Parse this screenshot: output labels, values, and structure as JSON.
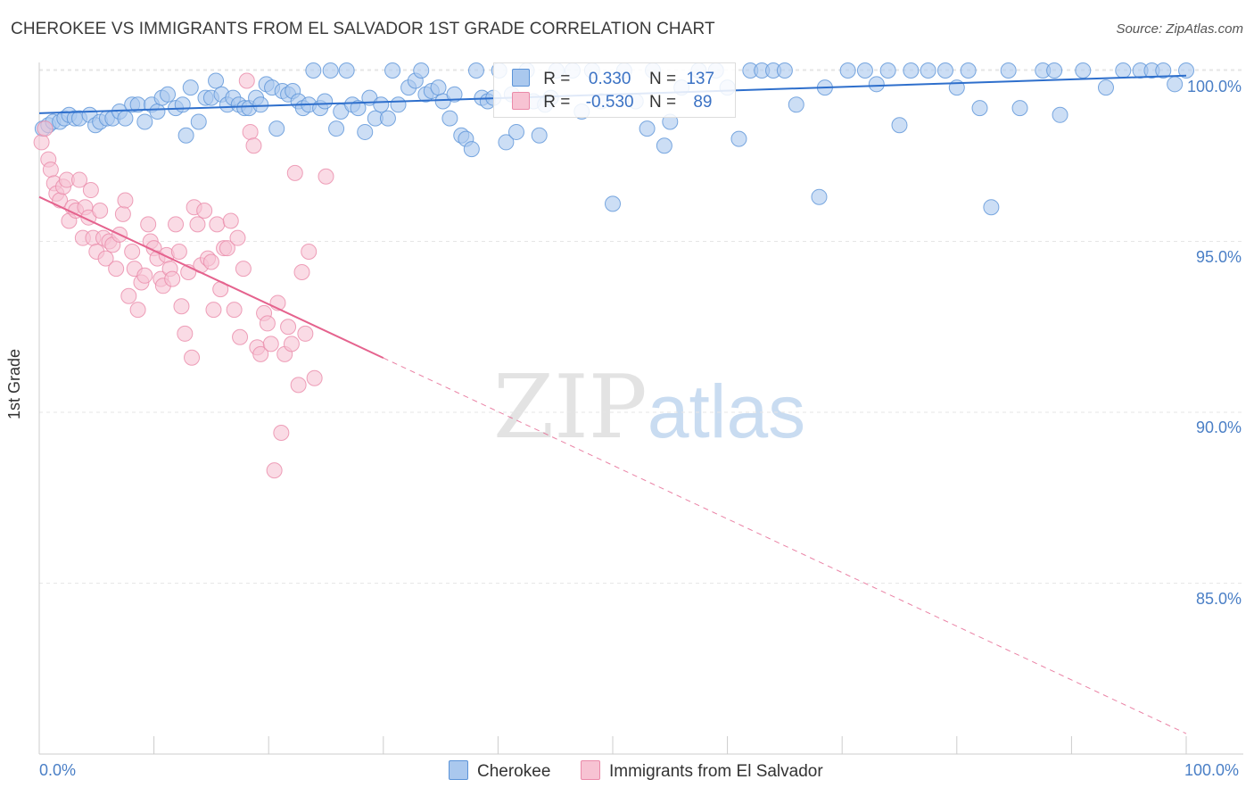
{
  "title": "CHEROKEE VS IMMIGRANTS FROM EL SALVADOR 1ST GRADE CORRELATION CHART",
  "source": "Source: ZipAtlas.com",
  "watermark": {
    "zip": "ZIP",
    "atlas": "atlas"
  },
  "legend_top": {
    "row1": {
      "r_label": "R =",
      "r_value": "0.330",
      "n_label": "N =",
      "n_value": "137"
    },
    "row2": {
      "r_label": "R =",
      "r_value": "-0.530",
      "n_label": "N =",
      "n_value": "89"
    }
  },
  "colors": {
    "blue_fill": "#aac8ee",
    "blue_stroke": "#5b93d8",
    "blue_line": "#2e6fcc",
    "pink_fill": "#f7c3d3",
    "pink_stroke": "#ea8aa9",
    "pink_line": "#e5638e",
    "tick_text": "#4a7fc6",
    "grid": "#e6e6e6"
  },
  "chart_data": {
    "type": "scatter",
    "title": "CHEROKEE VS IMMIGRANTS FROM EL SALVADOR 1ST GRADE CORRELATION CHART",
    "xlabel": "",
    "ylabel": "1st Grade",
    "xlim": [
      0,
      100
    ],
    "ylim": [
      80.5,
      100.8
    ],
    "x_tick_labels": [
      "0.0%",
      "100.0%"
    ],
    "y_ticks": [
      85,
      90,
      95,
      100
    ],
    "y_tick_labels": [
      "85.0%",
      "90.0%",
      "95.0%",
      "100.0%"
    ],
    "grid": true,
    "legend": [
      "Cherokee",
      "Immigrants from El Salvador"
    ],
    "series": [
      {
        "name": "Cherokee",
        "R": 0.33,
        "N": 137,
        "trend": {
          "x": [
            0,
            100
          ],
          "y": [
            98.75,
            99.85
          ],
          "solid_to": 100
        },
        "points": [
          [
            0.3,
            98.3
          ],
          [
            0.8,
            98.4
          ],
          [
            1.2,
            98.5
          ],
          [
            1.8,
            98.5
          ],
          [
            2.2,
            98.6
          ],
          [
            2.6,
            98.7
          ],
          [
            3.1,
            98.6
          ],
          [
            3.5,
            98.6
          ],
          [
            4.4,
            98.7
          ],
          [
            4.9,
            98.4
          ],
          [
            5.3,
            98.5
          ],
          [
            5.9,
            98.6
          ],
          [
            6.4,
            98.6
          ],
          [
            7.0,
            98.8
          ],
          [
            7.5,
            98.6
          ],
          [
            8.1,
            99.0
          ],
          [
            8.6,
            99.0
          ],
          [
            9.2,
            98.5
          ],
          [
            9.8,
            99.0
          ],
          [
            10.3,
            98.8
          ],
          [
            10.7,
            99.2
          ],
          [
            11.2,
            99.3
          ],
          [
            11.9,
            98.9
          ],
          [
            12.5,
            99.0
          ],
          [
            12.8,
            98.1
          ],
          [
            13.2,
            99.5
          ],
          [
            13.9,
            98.5
          ],
          [
            14.5,
            99.2
          ],
          [
            15.0,
            99.2
          ],
          [
            15.4,
            99.7
          ],
          [
            15.9,
            99.3
          ],
          [
            16.4,
            99.0
          ],
          [
            16.9,
            99.2
          ],
          [
            17.4,
            99.0
          ],
          [
            17.9,
            98.9
          ],
          [
            18.3,
            98.9
          ],
          [
            18.9,
            99.2
          ],
          [
            19.3,
            99.0
          ],
          [
            19.8,
            99.6
          ],
          [
            20.3,
            99.5
          ],
          [
            20.7,
            98.3
          ],
          [
            21.2,
            99.4
          ],
          [
            21.7,
            99.3
          ],
          [
            22.1,
            99.4
          ],
          [
            22.6,
            99.1
          ],
          [
            23.0,
            98.9
          ],
          [
            23.5,
            99.0
          ],
          [
            23.9,
            100.0
          ],
          [
            24.5,
            98.9
          ],
          [
            24.9,
            99.1
          ],
          [
            25.4,
            100.0
          ],
          [
            25.9,
            98.3
          ],
          [
            26.3,
            98.8
          ],
          [
            26.8,
            100.0
          ],
          [
            27.3,
            99.0
          ],
          [
            27.8,
            98.9
          ],
          [
            28.4,
            98.2
          ],
          [
            28.8,
            99.2
          ],
          [
            29.3,
            98.6
          ],
          [
            29.8,
            99.0
          ],
          [
            30.4,
            98.6
          ],
          [
            30.8,
            100.0
          ],
          [
            31.3,
            99.0
          ],
          [
            32.2,
            99.5
          ],
          [
            32.8,
            99.7
          ],
          [
            33.3,
            100.0
          ],
          [
            33.7,
            99.3
          ],
          [
            34.2,
            99.4
          ],
          [
            34.8,
            99.5
          ],
          [
            35.2,
            99.1
          ],
          [
            35.8,
            98.6
          ],
          [
            36.2,
            99.3
          ],
          [
            36.8,
            98.1
          ],
          [
            37.2,
            98.0
          ],
          [
            37.7,
            97.7
          ],
          [
            38.1,
            100.0
          ],
          [
            38.6,
            99.2
          ],
          [
            39.1,
            99.1
          ],
          [
            39.6,
            99.2
          ],
          [
            40.1,
            100.0
          ],
          [
            40.7,
            97.9
          ],
          [
            41.2,
            99.3
          ],
          [
            41.6,
            98.2
          ],
          [
            42.1,
            99.1
          ],
          [
            42.5,
            100.0
          ],
          [
            43.1,
            99.1
          ],
          [
            43.6,
            98.1
          ],
          [
            44.1,
            99.0
          ],
          [
            44.6,
            99.2
          ],
          [
            45.1,
            100.0
          ],
          [
            46.5,
            100.0
          ],
          [
            47.3,
            98.8
          ],
          [
            48.2,
            100.0
          ],
          [
            49.0,
            99.1
          ],
          [
            50.0,
            96.1
          ],
          [
            51.0,
            100.0
          ],
          [
            52.0,
            99.1
          ],
          [
            53.0,
            98.3
          ],
          [
            53.5,
            100.0
          ],
          [
            54.5,
            97.8
          ],
          [
            55.0,
            98.5
          ],
          [
            56.0,
            99.5
          ],
          [
            57.5,
            100.0
          ],
          [
            59.0,
            100.0
          ],
          [
            60.0,
            99.5
          ],
          [
            61.0,
            98.0
          ],
          [
            62.0,
            100.0
          ],
          [
            63.0,
            100.0
          ],
          [
            64.0,
            100.0
          ],
          [
            65.0,
            100.0
          ],
          [
            66.0,
            99.0
          ],
          [
            68.0,
            96.3
          ],
          [
            68.5,
            99.5
          ],
          [
            70.5,
            100.0
          ],
          [
            72.0,
            100.0
          ],
          [
            73.0,
            99.6
          ],
          [
            74.0,
            100.0
          ],
          [
            75.0,
            98.4
          ],
          [
            76.0,
            100.0
          ],
          [
            77.5,
            100.0
          ],
          [
            79.0,
            100.0
          ],
          [
            80.0,
            99.5
          ],
          [
            81.0,
            100.0
          ],
          [
            82.0,
            98.9
          ],
          [
            83.0,
            96.0
          ],
          [
            84.5,
            100.0
          ],
          [
            85.5,
            98.9
          ],
          [
            87.5,
            100.0
          ],
          [
            88.5,
            100.0
          ],
          [
            89.0,
            98.7
          ],
          [
            91.0,
            100.0
          ],
          [
            93.0,
            99.5
          ],
          [
            94.5,
            100.0
          ],
          [
            96.0,
            100.0
          ],
          [
            97.0,
            100.0
          ],
          [
            98.0,
            100.0
          ],
          [
            99.0,
            99.6
          ],
          [
            100.0,
            100.0
          ]
        ]
      },
      {
        "name": "Immigrants from El Salvador",
        "R": -0.53,
        "N": 89,
        "trend": {
          "x": [
            0,
            100
          ],
          "y": [
            96.3,
            80.6
          ],
          "solid_to": 30
        },
        "points": [
          [
            0.2,
            97.9
          ],
          [
            0.5,
            98.3
          ],
          [
            0.8,
            97.4
          ],
          [
            1.0,
            97.1
          ],
          [
            1.3,
            96.7
          ],
          [
            1.5,
            96.4
          ],
          [
            1.8,
            96.2
          ],
          [
            2.1,
            96.6
          ],
          [
            2.4,
            96.8
          ],
          [
            2.6,
            95.6
          ],
          [
            2.9,
            96.0
          ],
          [
            3.2,
            95.9
          ],
          [
            3.5,
            96.8
          ],
          [
            3.8,
            95.1
          ],
          [
            4.0,
            96.0
          ],
          [
            4.3,
            95.7
          ],
          [
            4.5,
            96.5
          ],
          [
            4.7,
            95.1
          ],
          [
            5.0,
            94.7
          ],
          [
            5.3,
            95.9
          ],
          [
            5.6,
            95.1
          ],
          [
            5.8,
            94.5
          ],
          [
            6.1,
            95.0
          ],
          [
            6.4,
            94.9
          ],
          [
            6.7,
            94.2
          ],
          [
            7.0,
            95.2
          ],
          [
            7.3,
            95.8
          ],
          [
            7.5,
            96.2
          ],
          [
            7.8,
            93.4
          ],
          [
            8.1,
            94.7
          ],
          [
            8.3,
            94.2
          ],
          [
            8.6,
            93.0
          ],
          [
            8.9,
            93.8
          ],
          [
            9.2,
            94.0
          ],
          [
            9.5,
            95.5
          ],
          [
            9.7,
            95.0
          ],
          [
            10.0,
            94.8
          ],
          [
            10.3,
            94.5
          ],
          [
            10.6,
            93.9
          ],
          [
            10.8,
            93.7
          ],
          [
            11.1,
            94.6
          ],
          [
            11.4,
            94.2
          ],
          [
            11.6,
            93.9
          ],
          [
            11.9,
            95.5
          ],
          [
            12.2,
            94.7
          ],
          [
            12.4,
            93.1
          ],
          [
            12.7,
            92.3
          ],
          [
            13.0,
            94.1
          ],
          [
            13.3,
            91.6
          ],
          [
            13.5,
            96.0
          ],
          [
            13.8,
            95.5
          ],
          [
            14.1,
            94.3
          ],
          [
            14.4,
            95.9
          ],
          [
            14.7,
            94.5
          ],
          [
            15.0,
            94.4
          ],
          [
            15.2,
            93.0
          ],
          [
            15.5,
            95.5
          ],
          [
            15.8,
            93.6
          ],
          [
            16.1,
            94.8
          ],
          [
            16.4,
            94.8
          ],
          [
            16.7,
            95.6
          ],
          [
            17.0,
            93.0
          ],
          [
            17.3,
            95.1
          ],
          [
            17.5,
            92.2
          ],
          [
            17.8,
            94.2
          ],
          [
            18.1,
            99.7
          ],
          [
            18.4,
            98.2
          ],
          [
            18.7,
            97.8
          ],
          [
            19.0,
            91.9
          ],
          [
            19.3,
            91.7
          ],
          [
            19.6,
            92.9
          ],
          [
            19.9,
            92.6
          ],
          [
            20.2,
            92.0
          ],
          [
            20.5,
            88.3
          ],
          [
            20.8,
            93.2
          ],
          [
            21.1,
            89.4
          ],
          [
            21.4,
            91.7
          ],
          [
            21.7,
            92.5
          ],
          [
            22.0,
            92.0
          ],
          [
            22.3,
            97.0
          ],
          [
            22.6,
            90.8
          ],
          [
            22.9,
            94.1
          ],
          [
            23.2,
            92.3
          ],
          [
            23.5,
            94.7
          ],
          [
            24.0,
            91.0
          ],
          [
            25.0,
            96.9
          ]
        ]
      }
    ]
  }
}
